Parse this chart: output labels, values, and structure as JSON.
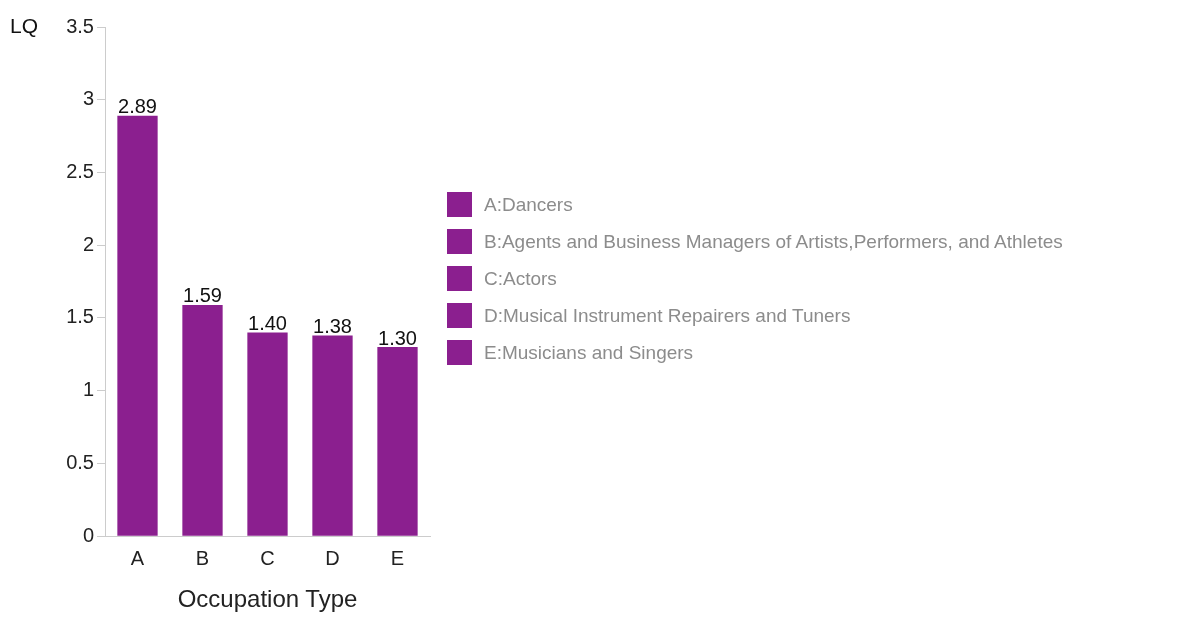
{
  "chart_data": {
    "type": "bar",
    "ylabel": "LQ",
    "xlabel": "Occupation Type",
    "categories": [
      "A",
      "B",
      "C",
      "D",
      "E"
    ],
    "values": [
      2.89,
      1.59,
      1.4,
      1.38,
      1.3
    ],
    "value_labels": [
      "2.89",
      "1.59",
      "1.40",
      "1.38",
      "1.30"
    ],
    "color": "#8b1f8f",
    "ylim": [
      0,
      3.5
    ],
    "yticks": [
      0,
      0.5,
      1,
      1.5,
      2,
      2.5,
      3,
      3.5
    ],
    "grid": false,
    "legend": false,
    "annotations": [
      "A:Dancers",
      "B:Agents and Business Managers of Artists,Performers, and Athletes",
      "C:Actors",
      "D:Musical Instrument Repairers and Tuners",
      "E:Musicians and Singers"
    ]
  }
}
